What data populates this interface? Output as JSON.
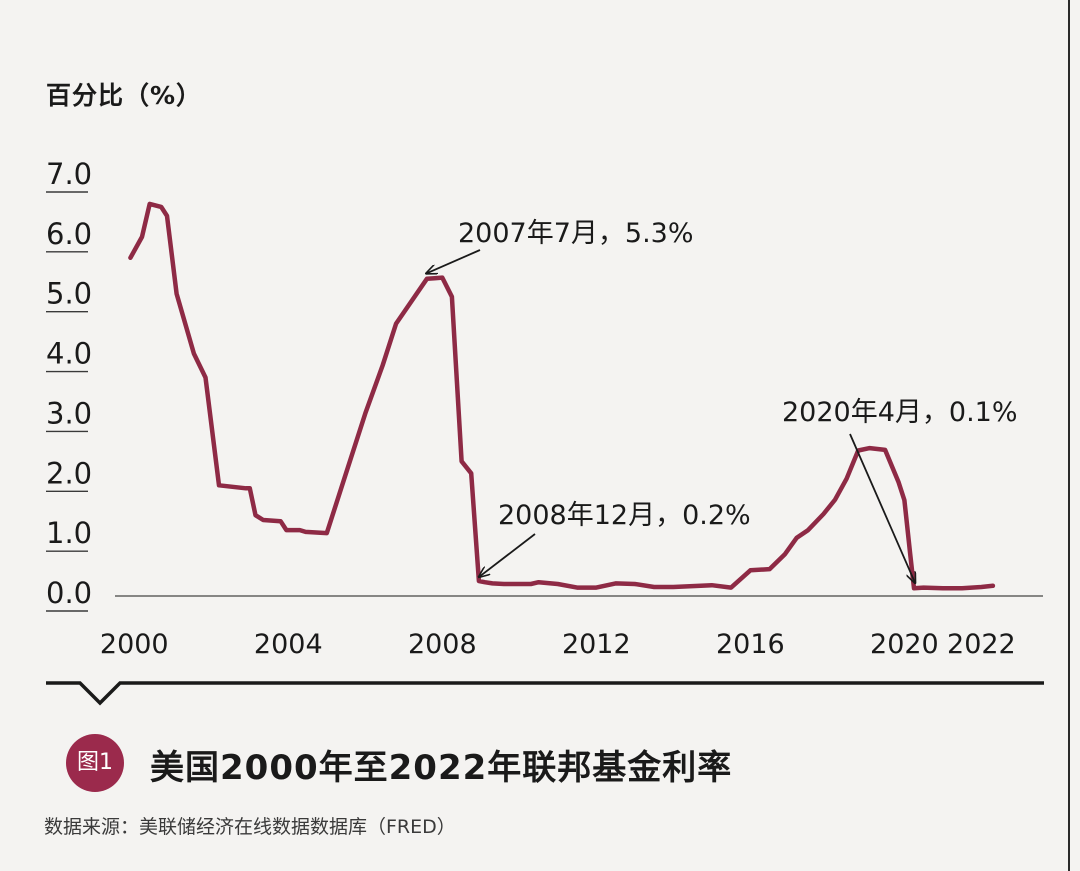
{
  "figure": {
    "badge": "图1",
    "title": "美国2000年至2022年联邦基金利率",
    "source": "数据来源：美联储经济在线数据数据库（FRED）"
  },
  "colors": {
    "line": "#8e2a45",
    "badge": "#9b2a4c",
    "text": "#1a1a1a",
    "background": "#f4f3f1"
  },
  "chart_data": {
    "type": "line",
    "title": "",
    "xlabel": "",
    "ylabel": "百分比（%）",
    "xlim": [
      1999.5,
      2023.6
    ],
    "ylim": [
      0.0,
      7.0
    ],
    "grid": false,
    "yticks": [
      "0.0",
      "1.0",
      "2.0",
      "3.0",
      "4.0",
      "5.0",
      "6.0",
      "7.0"
    ],
    "xticks": [
      "2000",
      "2004",
      "2008",
      "2012",
      "2016",
      "2020",
      "2022"
    ],
    "series": [
      {
        "x": [
          1999.9,
          2000.2,
          2000.4,
          2000.7,
          2000.85,
          2001.1,
          2001.55,
          2001.85,
          2002.2,
          2002.9,
          2003.0,
          2003.15,
          2003.35,
          2003.8,
          2003.95,
          2004.3,
          2004.45,
          2005.0,
          2005.5,
          2006.0,
          2006.45,
          2006.8,
          2007.6,
          2007.8,
          2008.0,
          2008.25,
          2008.5,
          2008.75,
          2008.95,
          2009.1,
          2009.3,
          2009.6,
          2010.0,
          2010.3,
          2010.5,
          2011.0,
          2011.5,
          2012.0,
          2012.5,
          2013.0,
          2013.5,
          2014.0,
          2015.0,
          2015.5,
          2016.0,
          2016.5,
          2016.9,
          2017.2,
          2017.5,
          2017.9,
          2018.2,
          2018.5,
          2018.8,
          2019.1,
          2019.5,
          2019.85,
          2020.0,
          2020.15,
          2020.25,
          2020.5,
          2021.0,
          2021.5,
          2022.0,
          2022.3
        ],
        "y": [
          5.6,
          5.95,
          6.5,
          6.45,
          6.3,
          5.0,
          4.0,
          3.6,
          1.8,
          1.75,
          1.75,
          1.3,
          1.22,
          1.2,
          1.05,
          1.05,
          1.02,
          1.0,
          2.0,
          3.0,
          3.8,
          4.5,
          5.25,
          5.26,
          5.27,
          4.95,
          2.2,
          2.0,
          0.2,
          0.18,
          0.16,
          0.15,
          0.15,
          0.15,
          0.18,
          0.15,
          0.09,
          0.09,
          0.16,
          0.15,
          0.1,
          0.1,
          0.13,
          0.09,
          0.38,
          0.4,
          0.65,
          0.92,
          1.05,
          1.32,
          1.56,
          1.91,
          2.38,
          2.42,
          2.39,
          1.85,
          1.55,
          0.65,
          0.08,
          0.09,
          0.08,
          0.08,
          0.1,
          0.12
        ]
      }
    ],
    "annotations": [
      {
        "text": "2007年7月，5.3%",
        "x": 2007.58,
        "y": 5.27
      },
      {
        "text": "2008年12月，0.2%",
        "x": 2008.95,
        "y": 0.2
      },
      {
        "text": "2020年4月，0.1%",
        "x": 2020.28,
        "y": 0.1
      }
    ]
  }
}
